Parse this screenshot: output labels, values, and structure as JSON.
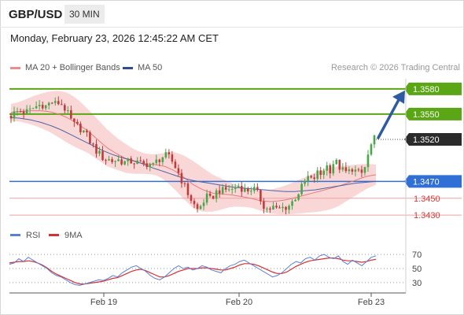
{
  "header": {
    "pair": "GBP/USD",
    "timeframe": "30 MIN"
  },
  "datetime": "Monday, February 23, 2026 12:45:22 AM CET",
  "legend": {
    "bb_label": "MA 20 + Bollinger Bands",
    "ma50_label": "MA 50",
    "credit": "Research © 2026 Trading Central"
  },
  "rsi_legend": {
    "rsi_label": "RSI",
    "ma_label": "9MA"
  },
  "colors": {
    "resistance": "#5aa614",
    "support": "#2f6fd6",
    "bands": "#f8c9c9",
    "ma20": "#e87b7b",
    "ma50": "#4a64a8",
    "arrow": "#2d5aa0",
    "bull": "#4aa64a",
    "bear": "#c23b3b",
    "rsi": "#5b7fd6",
    "rsi_ma": "#d63030"
  },
  "chart_data": [
    {
      "type": "line",
      "x": [
        "Feb 19",
        "Feb 20",
        "Feb 23"
      ],
      "levels": [
        {
          "label": "1.3580",
          "value": 1.358,
          "kind": "resistance"
        },
        {
          "label": "1.3550",
          "value": 1.355,
          "kind": "resistance"
        },
        {
          "label": "1.3520",
          "value": 1.352,
          "kind": "last-price"
        },
        {
          "label": "1.3470",
          "value": 1.347,
          "kind": "pivot"
        },
        {
          "label": "1.3450",
          "value": 1.345,
          "kind": "support"
        },
        {
          "label": "1.3430",
          "value": 1.343,
          "kind": "support"
        }
      ],
      "ylim": [
        1.3418,
        1.3592
      ],
      "price_path": [
        1.3548,
        1.3552,
        1.3554,
        1.3552,
        1.3553,
        1.3557,
        1.356,
        1.3562,
        1.3559,
        1.3565,
        1.3562,
        1.3564,
        1.3558,
        1.3548,
        1.3538,
        1.3535,
        1.3532,
        1.3525,
        1.3516,
        1.3508,
        1.3502,
        1.3497,
        1.3496,
        1.3494,
        1.3496,
        1.3494,
        1.3492,
        1.3494,
        1.3493,
        1.3491,
        1.349,
        1.3492,
        1.3488,
        1.3495,
        1.3499,
        1.35,
        1.3497,
        1.3488,
        1.3478,
        1.3466,
        1.3455,
        1.3445,
        1.3436,
        1.3442,
        1.3452,
        1.3448,
        1.3456,
        1.346,
        1.3458,
        1.3462,
        1.346,
        1.3466,
        1.3463,
        1.3458,
        1.3462,
        1.346,
        1.3452,
        1.3442,
        1.3436,
        1.344,
        1.3436,
        1.3438,
        1.344,
        1.3442,
        1.345,
        1.3458,
        1.3466,
        1.3475,
        1.347,
        1.348,
        1.3478,
        1.349,
        1.3484,
        1.3495,
        1.3488,
        1.3482,
        1.348,
        1.3486,
        1.3481,
        1.3478,
        1.3488,
        1.351,
        1.352
      ],
      "ma20_path": [
        1.3552,
        1.3553,
        1.3554,
        1.3554,
        1.3553,
        1.355,
        1.3545,
        1.3538,
        1.353,
        1.352,
        1.351,
        1.3503,
        1.3497,
        1.3493,
        1.3491,
        1.349,
        1.3488,
        1.3483,
        1.3475,
        1.3466,
        1.346,
        1.3456,
        1.3455,
        1.3454,
        1.3452,
        1.345,
        1.3447,
        1.3446,
        1.3447,
        1.3449,
        1.3452,
        1.3455,
        1.3458,
        1.3461,
        1.3464,
        1.3468,
        1.3472,
        1.3476,
        1.3478
      ],
      "ma50_path": [
        1.3546,
        1.3545,
        1.3543,
        1.354,
        1.3536,
        1.3531,
        1.3525,
        1.3519,
        1.3513,
        1.3507,
        1.3502,
        1.3498,
        1.3495,
        1.3491,
        1.3486,
        1.3482,
        1.3478,
        1.3474,
        1.3471,
        1.3469,
        1.3467,
        1.3465,
        1.3463,
        1.3462,
        1.3461,
        1.346,
        1.3459,
        1.3458,
        1.3458,
        1.3459,
        1.346,
        1.3462,
        1.3464,
        1.3466,
        1.3468,
        1.3469,
        1.347
      ],
      "band_width": [
        0.001,
        0.0012,
        0.0016,
        0.002,
        0.0024,
        0.0028,
        0.003,
        0.0029,
        0.0026,
        0.0024,
        0.0022,
        0.0019,
        0.0017,
        0.0014,
        0.0012,
        0.0012,
        0.0016,
        0.0022,
        0.0026,
        0.0028,
        0.0026,
        0.0022,
        0.0018,
        0.0014,
        0.0012,
        0.0011,
        0.0012,
        0.0014,
        0.0016,
        0.0018,
        0.002,
        0.0022,
        0.0024,
        0.0025,
        0.0024,
        0.0021,
        0.0018,
        0.0015,
        0.0012
      ]
    },
    {
      "type": "line",
      "name": "RSI",
      "x": [
        "Feb 19",
        "Feb 20",
        "Feb 23"
      ],
      "yticks": [
        70,
        50,
        30
      ],
      "ylim": [
        22,
        78
      ],
      "rsi": [
        56,
        58,
        64,
        60,
        66,
        62,
        58,
        54,
        50,
        44,
        40,
        38,
        34,
        30,
        27,
        26,
        28,
        30,
        32,
        34,
        33,
        36,
        40,
        38,
        44,
        48,
        52,
        54,
        50,
        46,
        40,
        36,
        34,
        38,
        44,
        50,
        54,
        50,
        52,
        48,
        50,
        54,
        52,
        48,
        46,
        44,
        50,
        54,
        56,
        60,
        62,
        58,
        54,
        50,
        46,
        42,
        38,
        40,
        44,
        50,
        56,
        60,
        58,
        64,
        66,
        62,
        68,
        70,
        66,
        64,
        68,
        60,
        56,
        62,
        58,
        54,
        60,
        66,
        68
      ],
      "rsi_ma": [
        58,
        59,
        60,
        60,
        61,
        60,
        58,
        55,
        51,
        46,
        42,
        39,
        36,
        33,
        30,
        28,
        28,
        29,
        30,
        31,
        32,
        34,
        36,
        37,
        40,
        43,
        46,
        48,
        49,
        47,
        44,
        41,
        38,
        38,
        40,
        43,
        46,
        48,
        50,
        50,
        50,
        51,
        51,
        50,
        49,
        48,
        48,
        50,
        52,
        55,
        57,
        57,
        56,
        54,
        51,
        48,
        45,
        43,
        43,
        45,
        49,
        53,
        56,
        59,
        61,
        62,
        63,
        64,
        65,
        65,
        64,
        62,
        61,
        61,
        60,
        59,
        60,
        62,
        63
      ]
    }
  ]
}
